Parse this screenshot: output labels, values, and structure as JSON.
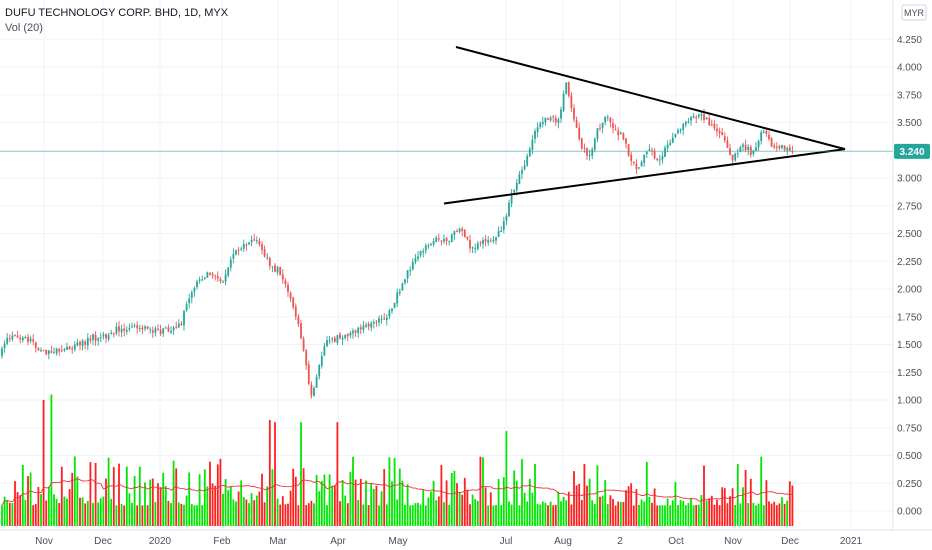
{
  "header": {
    "title": "DUFU TECHNOLOGY CORP. BHD, 1D, MYX",
    "volume_label": "Vol (20)"
  },
  "axis": {
    "currency": "MYR",
    "current_price_label": "3.240"
  },
  "colors": {
    "up": "#26a69a",
    "down": "#ef5350",
    "vol_up": "#00e600",
    "vol_down": "#ff1f1f",
    "vol_ma": "#ef3340",
    "current_line": "#26a69a",
    "current_label_bg": "#26a69a",
    "trendline": "#000000",
    "grid": "#f0f3fa"
  },
  "chart_data": {
    "type": "candlestick",
    "title": "DUFU TECHNOLOGY CORP. BHD, 1D, MYX",
    "y_ticks": [
      "0.000",
      "0.250",
      "0.500",
      "0.750",
      "1.000",
      "1.250",
      "1.500",
      "1.750",
      "2.000",
      "2.250",
      "2.500",
      "2.750",
      "3.000",
      "3.250",
      "3.500",
      "3.750",
      "4.000",
      "4.250"
    ],
    "ylim": [
      -0.07,
      4.6
    ],
    "x_ticks": [
      "Nov",
      "Dec",
      "2020",
      "Feb",
      "Mar",
      "Apr",
      "May",
      "Jul",
      "Aug",
      "2",
      "Oct",
      "Nov",
      "Dec",
      "2021"
    ],
    "current_price": 3.24,
    "price_path": [
      [
        0,
        1.4
      ],
      [
        8,
        1.55
      ],
      [
        18,
        1.58
      ],
      [
        30,
        1.52
      ],
      [
        40,
        1.47
      ],
      [
        48,
        1.42
      ],
      [
        60,
        1.45
      ],
      [
        75,
        1.48
      ],
      [
        90,
        1.55
      ],
      [
        105,
        1.58
      ],
      [
        120,
        1.65
      ],
      [
        140,
        1.66
      ],
      [
        160,
        1.62
      ],
      [
        175,
        1.63
      ],
      [
        182,
        1.72
      ],
      [
        188,
        1.9
      ],
      [
        200,
        2.1
      ],
      [
        215,
        2.15
      ],
      [
        222,
        2.05
      ],
      [
        228,
        2.22
      ],
      [
        236,
        2.35
      ],
      [
        246,
        2.4
      ],
      [
        256,
        2.45
      ],
      [
        262,
        2.38
      ],
      [
        270,
        2.2
      ],
      [
        280,
        2.15
      ],
      [
        290,
        1.95
      ],
      [
        298,
        1.7
      ],
      [
        305,
        1.4
      ],
      [
        312,
        1.0
      ],
      [
        318,
        1.3
      ],
      [
        325,
        1.5
      ],
      [
        335,
        1.55
      ],
      [
        348,
        1.6
      ],
      [
        362,
        1.65
      ],
      [
        378,
        1.72
      ],
      [
        390,
        1.8
      ],
      [
        400,
        1.98
      ],
      [
        410,
        2.2
      ],
      [
        425,
        2.38
      ],
      [
        438,
        2.46
      ],
      [
        448,
        2.44
      ],
      [
        460,
        2.55
      ],
      [
        470,
        2.37
      ],
      [
        482,
        2.42
      ],
      [
        494,
        2.45
      ],
      [
        502,
        2.55
      ],
      [
        512,
        2.85
      ],
      [
        520,
        3.05
      ],
      [
        528,
        3.2
      ],
      [
        536,
        3.45
      ],
      [
        548,
        3.55
      ],
      [
        558,
        3.5
      ],
      [
        566,
        3.85
      ],
      [
        572,
        3.6
      ],
      [
        580,
        3.3
      ],
      [
        590,
        3.2
      ],
      [
        598,
        3.45
      ],
      [
        606,
        3.55
      ],
      [
        614,
        3.42
      ],
      [
        622,
        3.4
      ],
      [
        630,
        3.2
      ],
      [
        638,
        3.08
      ],
      [
        648,
        3.25
      ],
      [
        658,
        3.15
      ],
      [
        668,
        3.3
      ],
      [
        678,
        3.42
      ],
      [
        690,
        3.55
      ],
      [
        700,
        3.58
      ],
      [
        712,
        3.45
      ],
      [
        722,
        3.38
      ],
      [
        732,
        3.15
      ],
      [
        742,
        3.3
      ],
      [
        752,
        3.22
      ],
      [
        762,
        3.42
      ],
      [
        772,
        3.3
      ],
      [
        782,
        3.28
      ],
      [
        792,
        3.24
      ]
    ],
    "trendlines": [
      {
        "name": "upper",
        "from": {
          "x": 456,
          "price": 4.18
        },
        "to": {
          "x": 845,
          "price": 3.26
        }
      },
      {
        "name": "lower",
        "from": {
          "x": 444,
          "price": 2.77
        },
        "to": {
          "x": 845,
          "price": 3.26
        }
      }
    ],
    "volume": {
      "label": "Vol (20)",
      "highlight_bars": [
        {
          "x": 43,
          "value": 1.0,
          "dir": "down"
        },
        {
          "x": 52,
          "value": 1.05,
          "dir": "up"
        },
        {
          "x": 270,
          "value": 0.82,
          "dir": "down"
        },
        {
          "x": 275,
          "value": 0.8,
          "dir": "down"
        },
        {
          "x": 300,
          "value": 0.8,
          "dir": "up"
        },
        {
          "x": 338,
          "value": 0.8,
          "dir": "down"
        },
        {
          "x": 507,
          "value": 0.72,
          "dir": "up"
        }
      ]
    }
  }
}
